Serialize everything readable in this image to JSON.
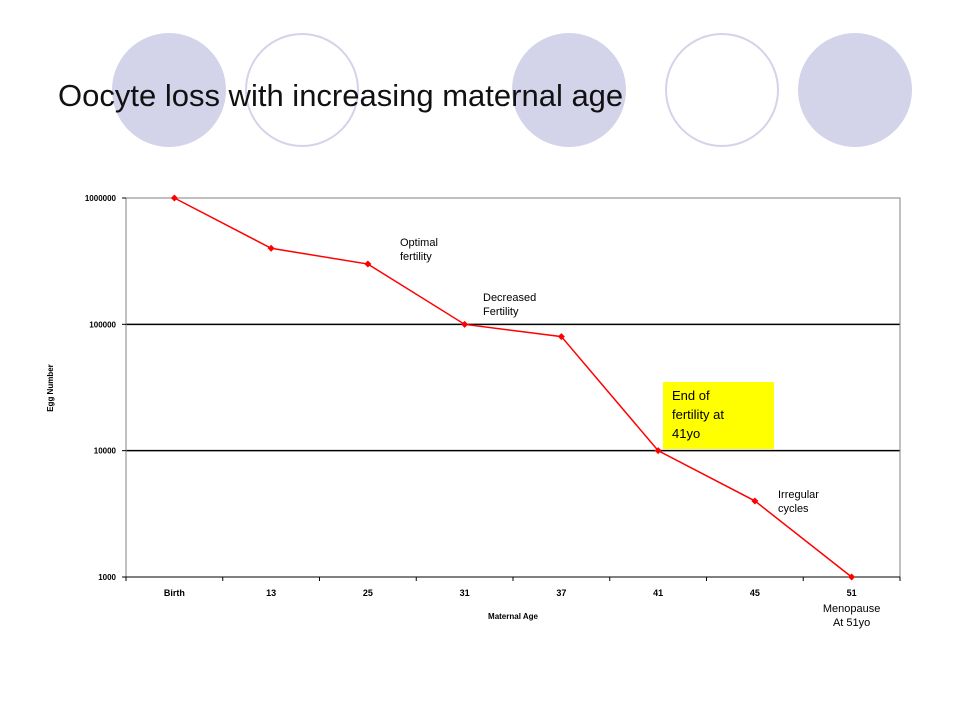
{
  "slide": {
    "title": "Oocyte loss with increasing maternal age"
  },
  "chart_data": {
    "type": "line",
    "y_scale": "log",
    "categories": [
      "Birth",
      "13",
      "25",
      "31",
      "37",
      "41",
      "45",
      "51"
    ],
    "values": [
      1000000,
      400000,
      300000,
      100000,
      80000,
      10000,
      4000,
      1000
    ],
    "y_ticks": [
      1000000,
      100000,
      10000,
      1000
    ],
    "y_tick_labels": [
      "1000000",
      "100000",
      "10000",
      "1000"
    ],
    "ylim": [
      1000,
      1000000
    ],
    "xlabel": "Maternal Age",
    "ylabel": "Egg Number",
    "x_sub_label": [
      "Menopause",
      "At 51yo"
    ],
    "grid": "horizontal major lines",
    "line_color": "#ff0000",
    "annotations": [
      {
        "lines": [
          "Optimal",
          "fertility"
        ]
      },
      {
        "lines": [
          "Decreased",
          "Fertility"
        ]
      },
      {
        "lines": [
          "End of",
          "fertility at",
          "41yo"
        ],
        "highlight": "#ffff00"
      },
      {
        "lines": [
          "Irregular",
          "cycles"
        ]
      }
    ]
  }
}
